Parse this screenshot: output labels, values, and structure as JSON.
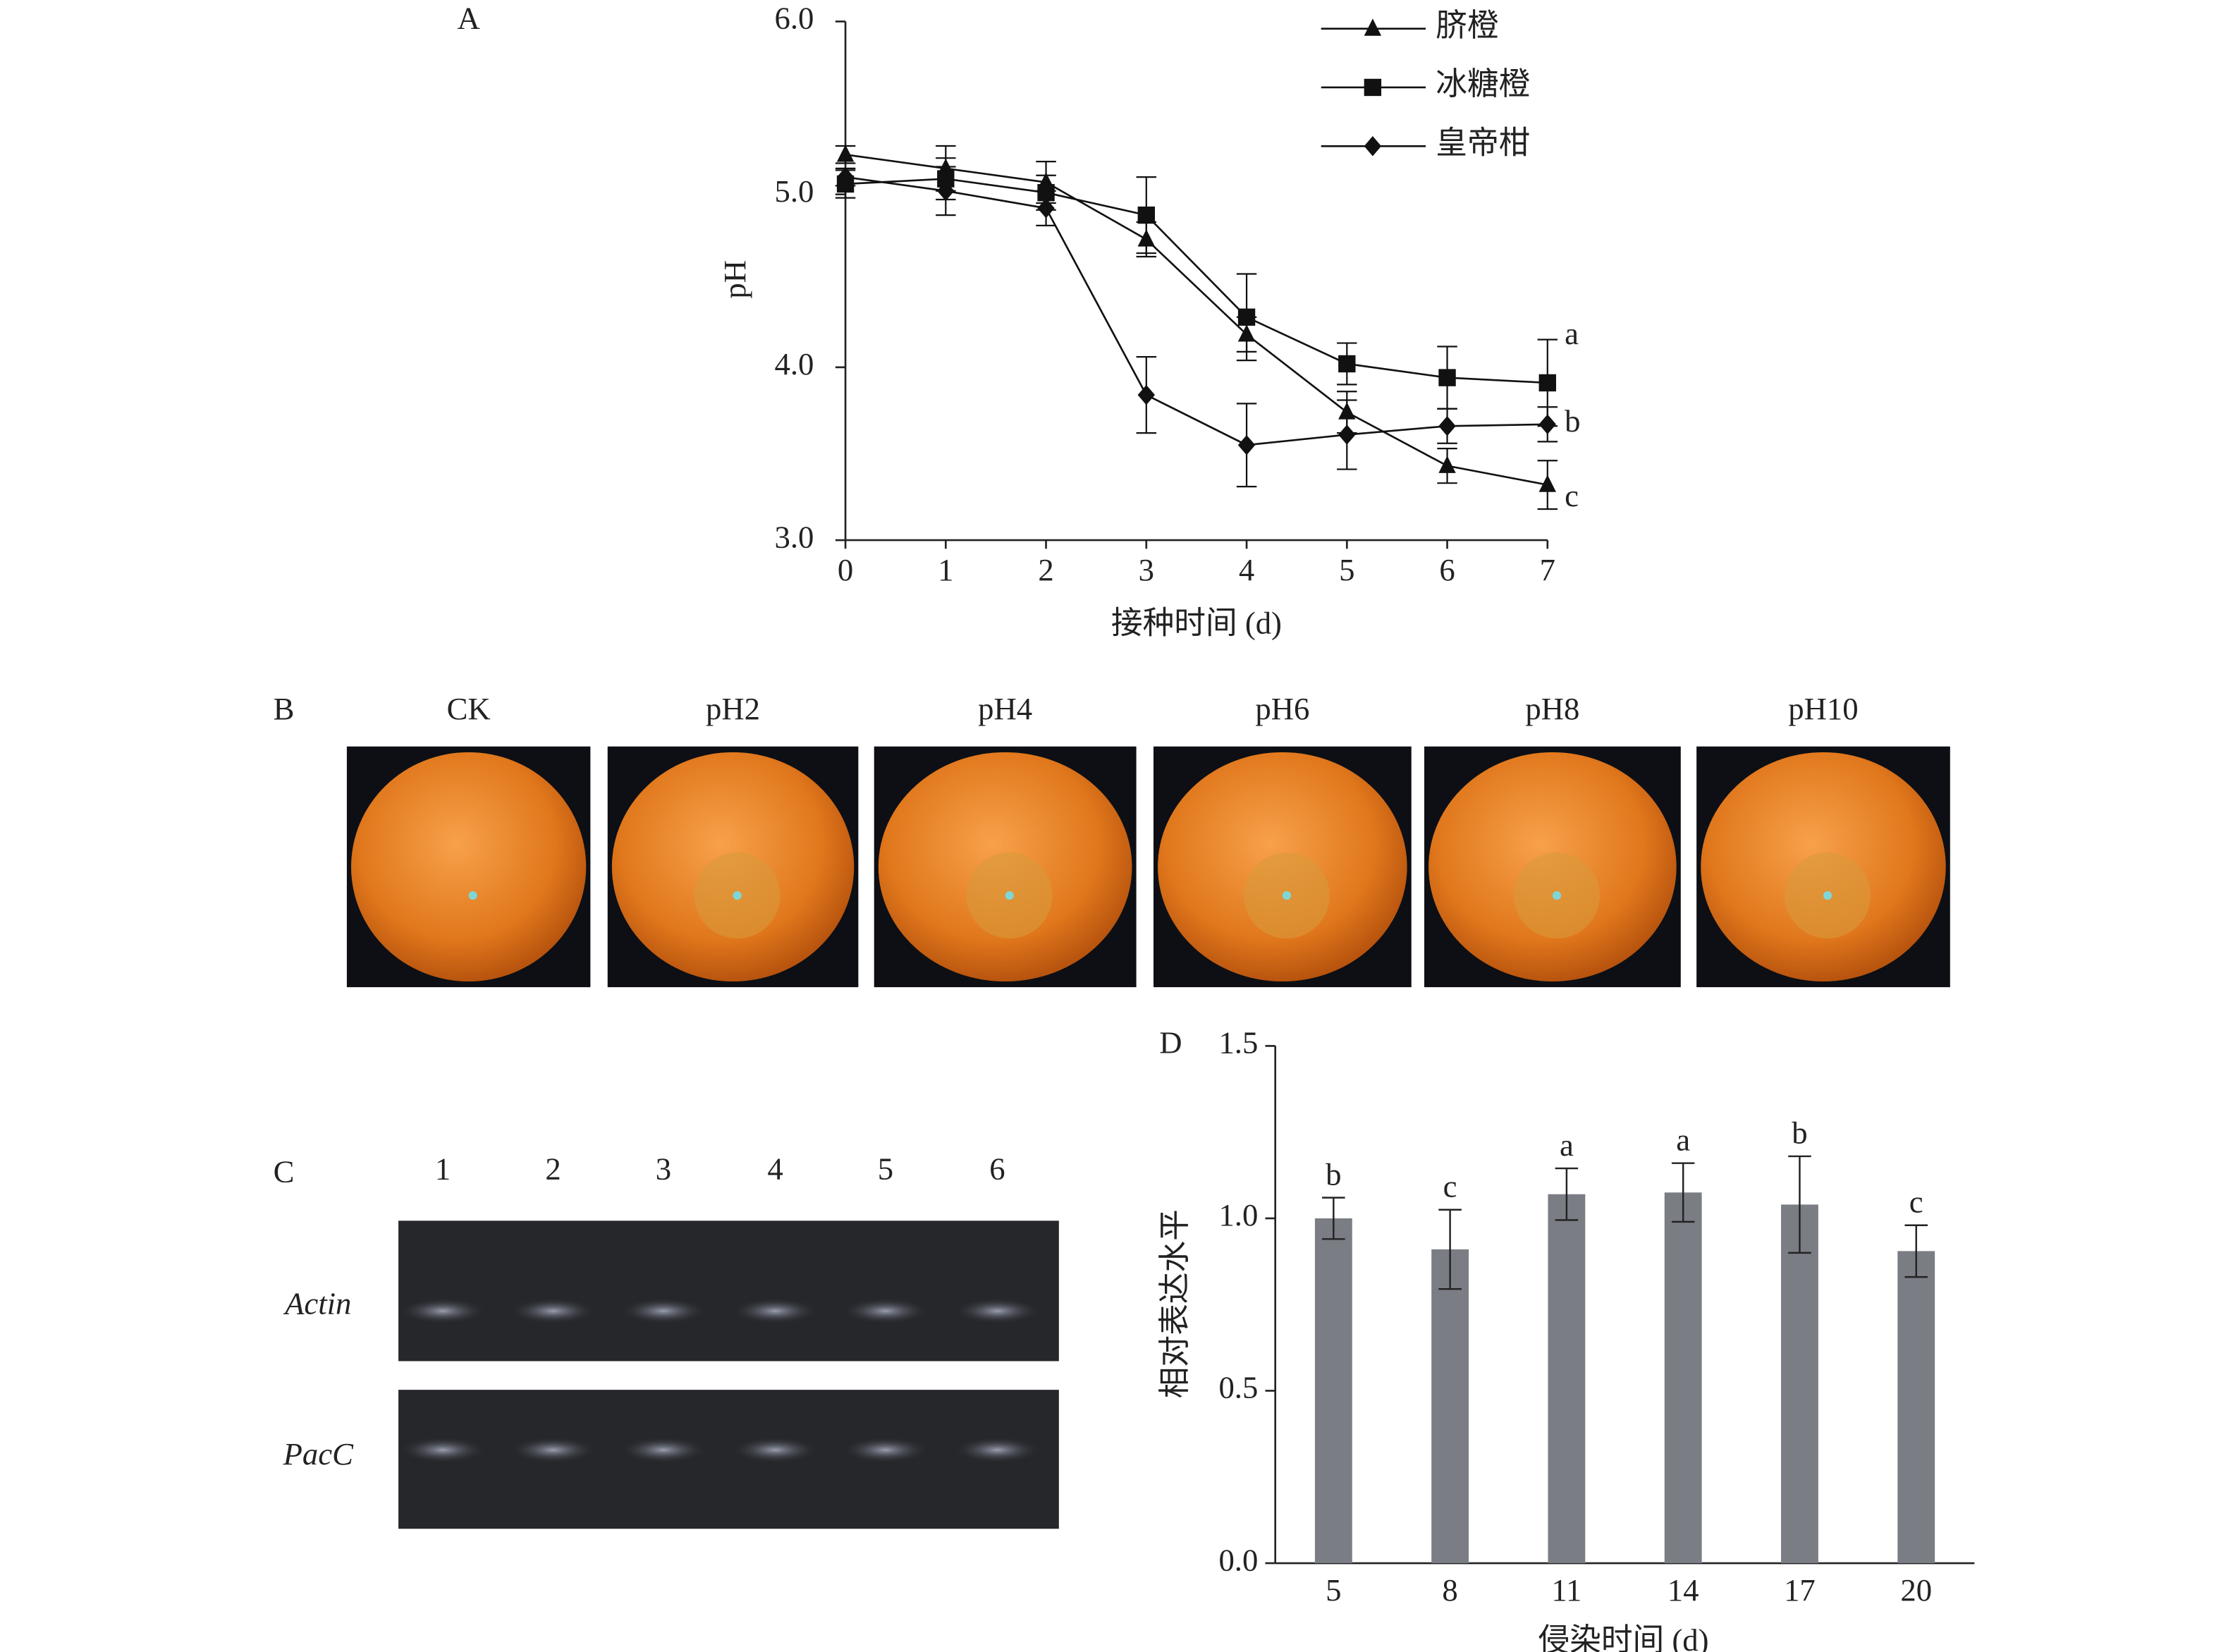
{
  "chart_data": [
    {
      "type": "line",
      "panel_label": "A",
      "x_label": "接种时间 (d)",
      "y_label": "pH",
      "x": [
        0,
        1,
        2,
        3,
        4,
        5,
        6,
        7
      ],
      "xlim": [
        0,
        7
      ],
      "xticks": [
        0,
        1,
        2,
        3,
        4,
        5,
        6,
        7
      ],
      "ylim": [
        3,
        6
      ],
      "yticks": [
        {
          "value": 3,
          "label": "3.0"
        },
        {
          "value": 4,
          "label": "4.0"
        },
        {
          "value": 5,
          "label": "5.0"
        },
        {
          "value": 6,
          "label": "6.0"
        }
      ],
      "legend": "top-right",
      "series": [
        {
          "name": "脐橙",
          "color": "#111111",
          "marker": "triangle",
          "letter": "c",
          "values": [
            5.23,
            5.15,
            5.07,
            4.74,
            4.19,
            3.74,
            3.43,
            3.32
          ],
          "errors": [
            0.05,
            0.13,
            0.12,
            0.1,
            0.1,
            0.12,
            0.1,
            0.14
          ]
        },
        {
          "name": "冰糖橙",
          "color": "#111111",
          "marker": "square",
          "letter": "a",
          "values": [
            5.06,
            5.09,
            5.01,
            4.88,
            4.29,
            4.02,
            3.94,
            3.91
          ],
          "errors": [
            0.08,
            0.12,
            0.1,
            0.22,
            0.25,
            0.12,
            0.18,
            0.25
          ]
        },
        {
          "name": "皇帝柑",
          "color": "#111111",
          "marker": "diamond",
          "letter": "b",
          "values": [
            5.1,
            5.02,
            4.92,
            3.84,
            3.55,
            3.61,
            3.66,
            3.67
          ],
          "errors": [
            0.05,
            0.14,
            0.1,
            0.22,
            0.24,
            0.2,
            0.1,
            0.1
          ]
        }
      ]
    },
    {
      "type": "bar",
      "panel_label": "D",
      "x_label": "侵染时间 (d)",
      "y_label": "相对表达水平",
      "categories": [
        "5",
        "8",
        "11",
        "14",
        "17",
        "20"
      ],
      "values": [
        1.0,
        0.91,
        1.07,
        1.075,
        1.04,
        0.905
      ],
      "errors": [
        0.06,
        0.115,
        0.075,
        0.085,
        0.14,
        0.075
      ],
      "letters": [
        "b",
        "c",
        "a",
        "a",
        "b",
        "c"
      ],
      "color": "#7b7d84",
      "ylim": [
        0,
        1.5
      ],
      "yticks": [
        {
          "value": 0,
          "label": "0.0"
        },
        {
          "value": 0.5,
          "label": "0.5"
        },
        {
          "value": 1,
          "label": "1.0"
        },
        {
          "value": 1.5,
          "label": "1.5"
        }
      ]
    }
  ],
  "panel_b": {
    "panel_label": "B",
    "images": [
      "CK",
      "pH2",
      "pH4",
      "pH6",
      "pH8",
      "pH10"
    ]
  },
  "panel_c": {
    "panel_label": "C",
    "lanes": [
      "1",
      "2",
      "3",
      "4",
      "5",
      "6"
    ],
    "rows": [
      "Actin",
      "PacC"
    ]
  }
}
